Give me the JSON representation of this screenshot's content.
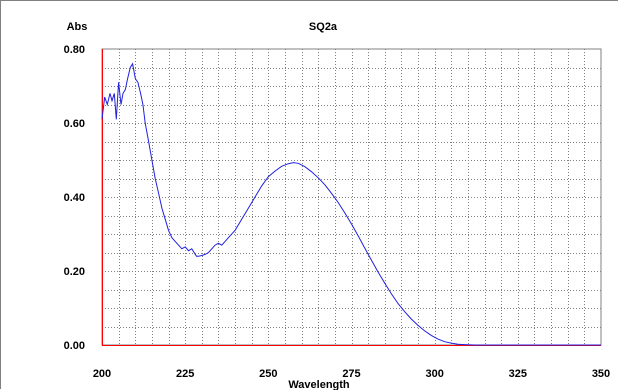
{
  "chart_data": {
    "type": "line",
    "title": "SQ2a",
    "xlabel": "Wavelength",
    "ylabel": "Abs",
    "xlim": [
      200,
      350
    ],
    "ylim": [
      0.0,
      0.8
    ],
    "x_ticks": [
      200,
      225,
      250,
      275,
      300,
      325,
      350
    ],
    "x_tick_labels": [
      "200",
      "225",
      "250",
      "275",
      "300",
      "325",
      "350"
    ],
    "y_ticks": [
      0.0,
      0.2,
      0.4,
      0.6,
      0.8
    ],
    "y_tick_labels": [
      "0.00",
      "0.20",
      "0.40",
      "0.60",
      "0.80"
    ],
    "grid": true,
    "colors": {
      "line": "#2020e0",
      "axis": "#ff0000",
      "grid": "#808080"
    },
    "series": [
      {
        "x": [
          200,
          200.8,
          201.6,
          202.4,
          203,
          203.7,
          204.3,
          205,
          205.7,
          206.3,
          207,
          207.7,
          208.5,
          209.2,
          210,
          210.8,
          211.6,
          212.3,
          213,
          214,
          215,
          216,
          217,
          218,
          219,
          220,
          221,
          222,
          223,
          224,
          225,
          226,
          227,
          227.7,
          228.4,
          229,
          230,
          231,
          232,
          233,
          234,
          235,
          236,
          237,
          238,
          240,
          242,
          244,
          246,
          248,
          250,
          252,
          254,
          256,
          257.5,
          259,
          261,
          263,
          265,
          267,
          269,
          271,
          273,
          275,
          277,
          279,
          281,
          283,
          285,
          287,
          289,
          291,
          293,
          295,
          297,
          299,
          301,
          303,
          305,
          307,
          309,
          312,
          320,
          335,
          350
        ],
        "y": [
          0.61,
          0.67,
          0.65,
          0.68,
          0.66,
          0.68,
          0.61,
          0.71,
          0.65,
          0.68,
          0.69,
          0.72,
          0.75,
          0.76,
          0.72,
          0.71,
          0.68,
          0.65,
          0.6,
          0.55,
          0.5,
          0.45,
          0.41,
          0.37,
          0.34,
          0.31,
          0.29,
          0.28,
          0.27,
          0.26,
          0.265,
          0.255,
          0.26,
          0.25,
          0.24,
          0.24,
          0.242,
          0.245,
          0.25,
          0.26,
          0.27,
          0.275,
          0.27,
          0.28,
          0.29,
          0.31,
          0.34,
          0.37,
          0.4,
          0.43,
          0.455,
          0.47,
          0.483,
          0.49,
          0.493,
          0.491,
          0.482,
          0.468,
          0.452,
          0.433,
          0.41,
          0.385,
          0.357,
          0.327,
          0.295,
          0.262,
          0.229,
          0.197,
          0.167,
          0.138,
          0.112,
          0.09,
          0.07,
          0.053,
          0.038,
          0.026,
          0.016,
          0.009,
          0.005,
          0.002,
          0.001,
          0.0,
          0.0,
          0.0,
          0.0
        ]
      }
    ]
  }
}
